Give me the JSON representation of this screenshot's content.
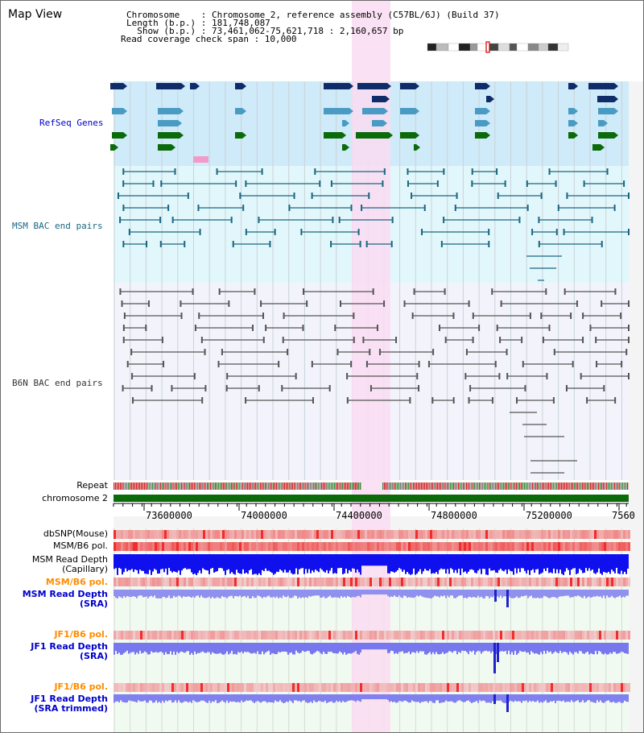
{
  "header": {
    "title": "Map View",
    "chromosome_line": "Chromosome    : Chromosome 2, reference assembly (C57BL/6J) (Build 37)",
    "length_line": "Length (b.p.) : 181,748,087",
    "show_line": "  Show (b.p.) : 73,461,062-75,621,718 : 2,160,657 bp",
    "coverage_line": "Read coverage check span : 10,000"
  },
  "tracks": {
    "refseq_genes": {
      "label": "RefSeq Genes",
      "color": "#0000cc"
    },
    "msm_bac": {
      "label": "MSM BAC end pairs",
      "color": "#1a6680"
    },
    "b6n_bac": {
      "label": "B6N BAC end pairs",
      "color": "#333333"
    },
    "repeat": {
      "label": "Repeat"
    },
    "chromosome": {
      "label": "chromosome 2"
    },
    "dbsnp": {
      "label": "dbSNP(Mouse)"
    },
    "msm_b6_pol_1": {
      "label": "MSM/B6 pol."
    },
    "msm_depth_cap": {
      "label": "MSM Read Depth\n(Capillary)"
    },
    "msm_b6_pol_2": {
      "label": "MSM/B6 pol.",
      "color": "#ff8c00"
    },
    "msm_depth_sra": {
      "label": "MSM Read Depth\n(SRA)",
      "color": "#0000cc"
    },
    "jf1_b6_pol_1": {
      "label": "JF1/B6 pol.",
      "color": "#ff8c00"
    },
    "jf1_depth_sra": {
      "label": "JF1 Read Depth\n(SRA)",
      "color": "#0000cc"
    },
    "jf1_b6_pol_2": {
      "label": "JF1/B6 pol.",
      "color": "#ff8c00"
    },
    "jf1_depth_trim": {
      "label": "JF1 Read Depth\n(SRA trimmed)",
      "color": "#0000cc"
    }
  },
  "axis": {
    "ticks": [
      "73600000",
      "74000000",
      "74400000",
      "74800000",
      "75200000",
      "7560"
    ]
  },
  "colors": {
    "highlight": "#fadcf2",
    "gene_navy": "#0f2c68",
    "gene_light_blue": "#4a9bc4",
    "gene_green": "#0b6b0b",
    "bac_msm": "#1a6680",
    "bac_b6n": "#555555",
    "depth_blue": "#1010ee",
    "depth_light": "#7777ee",
    "pol_red": "#ee2020"
  }
}
